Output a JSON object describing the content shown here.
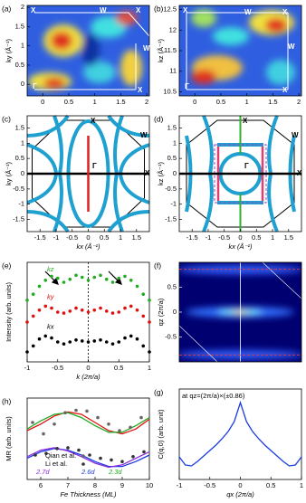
{
  "chart_data": [
    {
      "type": "heatmap",
      "label": "(a)",
      "ylabel": "ky (Å⁻¹)",
      "xlim": [
        -0.3,
        2.05
      ],
      "ylim": [
        -0.3,
        2.05
      ],
      "xticks": [
        0,
        0.5,
        1,
        1.5,
        2
      ],
      "yticks": [
        0,
        0.5,
        1,
        1.5,
        2
      ],
      "annotations": [
        "X",
        "W",
        "X",
        "W",
        "X",
        "Γ"
      ]
    },
    {
      "type": "heatmap",
      "label": "(b)",
      "ylabel": "kz (Å⁻¹)",
      "xlim": [
        -0.3,
        2.05
      ],
      "ylim": [
        10.4,
        12.6
      ],
      "xticks": [
        0,
        0.5,
        1,
        1.5,
        2
      ],
      "yticks": [
        10.5,
        11,
        11.5,
        12,
        12.5
      ],
      "annotations": [
        "X",
        "W",
        "X",
        "W",
        "X",
        "Γ"
      ]
    },
    {
      "type": "diagram",
      "label": "(c)",
      "xlabel": "kx (Å⁻¹)",
      "ylabel": "ky (Å⁻¹)",
      "xlim": [
        -1.9,
        1.9
      ],
      "ylim": [
        -1.9,
        1.9
      ],
      "xticks": [
        -1.5,
        -1,
        -0.5,
        0,
        0.5,
        1,
        1.5
      ],
      "yticks": [
        -1.5,
        -1,
        -0.5,
        0,
        0.5,
        1,
        1.5
      ],
      "annotations": [
        "X",
        "W",
        "X",
        "Γ"
      ]
    },
    {
      "type": "diagram",
      "label": "(d)",
      "xlabel": "kx (Å⁻¹)",
      "ylabel": "kz (Å⁻¹)",
      "xlim": [
        -1.9,
        1.9
      ],
      "ylim": [
        -1.9,
        1.9
      ],
      "xticks": [
        -1.5,
        -1,
        -0.5,
        0,
        0.5,
        1,
        1.5
      ],
      "yticks": [
        -1.5,
        -1,
        -0.5,
        0,
        0.5,
        1,
        1.5
      ],
      "annotations": [
        "X",
        "W",
        "X",
        "Γ"
      ]
    },
    {
      "type": "scatter",
      "label": "(e)",
      "xlabel": "k (2π/a)",
      "ylabel": "Intensity (arb. units)",
      "xlim": [
        -1,
        1
      ],
      "ylim": [
        0,
        10
      ],
      "xticks": [
        -1,
        -0.5,
        0,
        0.5,
        1
      ],
      "x": [
        -1,
        -0.9,
        -0.8,
        -0.7,
        -0.6,
        -0.5,
        -0.4,
        -0.3,
        -0.2,
        -0.1,
        0,
        0.1,
        0.2,
        0.3,
        0.4,
        0.5,
        0.6,
        0.7,
        0.8,
        0.9,
        1
      ],
      "series": [
        {
          "name": "kz",
          "color": "#22aa22",
          "values": [
            6.2,
            6.8,
            7.6,
            8.2,
            8.6,
            8.4,
            8.0,
            8.3,
            8.7,
            8.5,
            8.2,
            8.5,
            8.7,
            8.3,
            8.0,
            8.4,
            8.6,
            8.2,
            7.6,
            6.8,
            6.2
          ]
        },
        {
          "name": "ky",
          "color": "#e01010",
          "values": [
            4.0,
            4.6,
            5.2,
            5.6,
            5.4,
            5.0,
            4.9,
            5.1,
            5.4,
            5.2,
            5.0,
            5.2,
            5.4,
            5.1,
            4.9,
            5.0,
            5.4,
            5.6,
            5.2,
            4.6,
            4.0
          ]
        },
        {
          "name": "kx",
          "color": "#000000",
          "values": [
            1.0,
            1.6,
            2.3,
            2.6,
            2.4,
            2.0,
            1.8,
            2.0,
            2.2,
            2.1,
            2.0,
            2.1,
            2.2,
            2.0,
            1.8,
            2.0,
            2.4,
            2.6,
            2.3,
            1.6,
            1.0
          ]
        }
      ]
    },
    {
      "type": "heatmap",
      "label": "(f)",
      "ylabel": "qz (2π/a)",
      "ylim": [
        -1,
        1
      ],
      "yticks": [
        -0.5,
        0,
        0.5
      ],
      "hlines": [
        -0.86,
        0.86
      ]
    },
    {
      "type": "line",
      "label": "(g)",
      "xlabel": "qx (2π/a)",
      "ylabel": "C(q,0) (arb. unit)",
      "annotation": "at qz=(2π/a)×(±0.86)",
      "xlim": [
        -1,
        1
      ],
      "ylim": [
        0,
        10
      ],
      "xticks": [
        -1,
        -0.5,
        0,
        0.5,
        1
      ],
      "x": [
        -1,
        -0.9,
        -0.8,
        -0.7,
        -0.6,
        -0.5,
        -0.4,
        -0.3,
        -0.2,
        -0.1,
        0,
        0.1,
        0.2,
        0.3,
        0.4,
        0.5,
        0.6,
        0.7,
        0.8,
        0.9,
        1
      ],
      "series": [
        {
          "color": "#1a3ce0",
          "values": [
            2.5,
            1.6,
            1.5,
            2.0,
            2.6,
            3.2,
            3.8,
            4.5,
            5.3,
            6.4,
            8.5,
            6.4,
            5.3,
            4.5,
            3.8,
            3.2,
            2.6,
            2.0,
            1.5,
            1.6,
            2.5
          ]
        }
      ]
    },
    {
      "type": "mixed",
      "label": "(h)",
      "xlabel": "Fe Thickness (ML)",
      "ylabel": "MR (arb. units)",
      "xlim": [
        5.5,
        10
      ],
      "ylim": [
        0,
        10
      ],
      "xticks": [
        6,
        7,
        8,
        9,
        10
      ],
      "points": [
        {
          "name": "Qian et al.",
          "color": "#666666",
          "x": [
            5.7,
            6.1,
            6.5,
            6.9,
            7.3,
            7.7,
            8.1,
            8.5,
            8.9,
            9.3,
            9.7
          ],
          "values": [
            7.0,
            5.6,
            6.8,
            8.2,
            8.5,
            8.4,
            7.6,
            6.8,
            6.0,
            6.4,
            7.6
          ]
        },
        {
          "name": "Li et al.",
          "color": "#333333",
          "x": [
            5.8,
            6.2,
            6.6,
            7.0,
            7.4,
            7.8,
            8.2,
            8.6,
            9.0,
            9.4,
            9.8
          ],
          "values": [
            3.0,
            3.2,
            3.8,
            3.9,
            3.6,
            3.0,
            2.6,
            2.4,
            2.2,
            2.8,
            3.4
          ]
        }
      ],
      "x": [
        5.5,
        6,
        6.5,
        7,
        7.5,
        8,
        8.5,
        9,
        9.5,
        10
      ],
      "series": [
        {
          "color": "#e01010",
          "values": [
            6.0,
            6.8,
            7.8,
            8.3,
            8.0,
            7.0,
            6.0,
            5.6,
            6.2,
            7.4
          ]
        },
        {
          "name": "2.3d",
          "color": "#22aa22",
          "values": [
            6.2,
            7.2,
            8.0,
            8.2,
            7.6,
            6.6,
            5.8,
            5.8,
            6.6,
            7.6
          ]
        },
        {
          "name": "2.6d",
          "color": "#1a3ce0",
          "values": [
            2.6,
            3.4,
            3.8,
            3.6,
            3.0,
            2.2,
            1.6,
            1.6,
            2.2,
            3.0
          ]
        },
        {
          "name": "2.7d",
          "color": "#8a2be2",
          "values": [
            2.8,
            3.6,
            3.9,
            3.5,
            2.8,
            2.0,
            1.5,
            1.8,
            2.6,
            3.4
          ]
        }
      ]
    }
  ]
}
